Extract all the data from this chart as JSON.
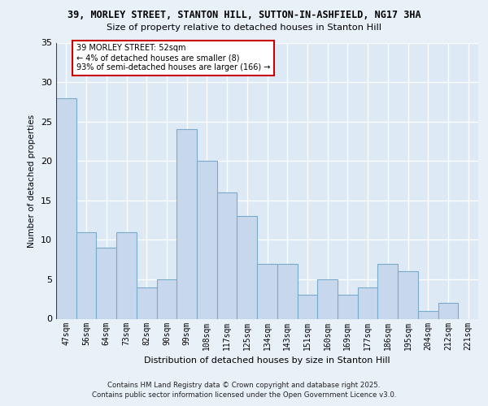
{
  "title_line1": "39, MORLEY STREET, STANTON HILL, SUTTON-IN-ASHFIELD, NG17 3HA",
  "title_line2": "Size of property relative to detached houses in Stanton Hill",
  "xlabel": "Distribution of detached houses by size in Stanton Hill",
  "ylabel": "Number of detached properties",
  "categories": [
    "47sqm",
    "56sqm",
    "64sqm",
    "73sqm",
    "82sqm",
    "90sqm",
    "99sqm",
    "108sqm",
    "117sqm",
    "125sqm",
    "134sqm",
    "143sqm",
    "151sqm",
    "160sqm",
    "169sqm",
    "177sqm",
    "186sqm",
    "195sqm",
    "204sqm",
    "212sqm",
    "221sqm"
  ],
  "values": [
    28,
    11,
    9,
    11,
    4,
    5,
    24,
    20,
    16,
    13,
    7,
    7,
    3,
    5,
    3,
    4,
    7,
    6,
    1,
    2,
    0
  ],
  "bar_color": "#c8d8ec",
  "bar_edge_color": "#7aaaca",
  "vline_color": "#cc0000",
  "annotation_title": "39 MORLEY STREET: 52sqm",
  "annotation_line2": "← 4% of detached houses are smaller (8)",
  "annotation_line3": "93% of semi-detached houses are larger (166) →",
  "annotation_box_facecolor": "#ffffff",
  "annotation_box_edgecolor": "#cc0000",
  "ylim": [
    0,
    35
  ],
  "yticks": [
    0,
    5,
    10,
    15,
    20,
    25,
    30,
    35
  ],
  "bg_color": "#e8f0f8",
  "plot_bg_color": "#ddeaf6",
  "grid_color": "#ffffff",
  "footer": "Contains HM Land Registry data © Crown copyright and database right 2025.\nContains public sector information licensed under the Open Government Licence v3.0."
}
